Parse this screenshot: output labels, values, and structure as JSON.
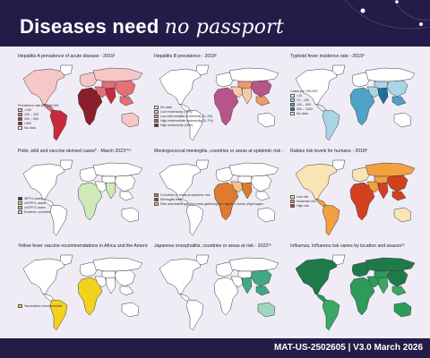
{
  "header": {
    "title_main": "Diseases need",
    "title_em": "no passport"
  },
  "footer": {
    "code": "MAT-US-2502605 | V3.0 March 2026"
  },
  "panels": [
    {
      "title": "Hepatitis A prevalence of acute disease - 2019¹",
      "legend_header": "Prevalence rate per 100,000",
      "legend": [
        {
          "label": "<100",
          "color": "#f7c6c7"
        },
        {
          "label": "100 – 200",
          "color": "#e46f78"
        },
        {
          "label": "200 – 500",
          "color": "#c72b3b"
        },
        {
          "label": ">500",
          "color": "#8c1d2b"
        },
        {
          "label": "No data",
          "color": "#ffffff"
        }
      ]
    },
    {
      "title": "Hepatitis B prevalence - 2019²",
      "legend_header": "",
      "legend": [
        {
          "label": "No data",
          "color": "#ffffff"
        },
        {
          "label": "Low endemicity (<2%)",
          "color": "#f8c9a8"
        },
        {
          "label": "Low intermediate endemicity (2–4%)",
          "color": "#ef9a6b"
        },
        {
          "label": "High intermediate endemicity (5–7%)",
          "color": "#b8548a"
        },
        {
          "label": "High endemicity (≥8%)",
          "color": "#7a1f4d"
        }
      ]
    },
    {
      "title": "Typhoid fever incidence rate - 2019³",
      "legend_header": "Cases per 100,000",
      "legend": [
        {
          "label": "<10",
          "color": "#e3f1f6"
        },
        {
          "label": "10 – 100",
          "color": "#a9d6e6"
        },
        {
          "label": "100 – 500",
          "color": "#4fa3c7"
        },
        {
          "label": "500 – 1000",
          "color": "#1f6f9a"
        },
        {
          "label": "No data",
          "color": "#ffffff"
        }
      ]
    },
    {
      "title": "Polio, wild and vaccine derived cases* - March 2023⁴⁵⁶",
      "legend_header": "",
      "legend": [
        {
          "label": "WPV1 cases",
          "color": "#3b2c6e"
        },
        {
          "label": "cVDPV1 cases",
          "color": "#e0d566"
        },
        {
          "label": "cVDPV2 cases",
          "color": "#9fd17a"
        },
        {
          "label": "Endemic countries",
          "color": "#cfe9b8"
        }
      ]
    },
    {
      "title": "Meningococcal meningitis, countries or areas at epidemic risk - 2015⁷",
      "legend_header": "",
      "legend": [
        {
          "label": "Countries or areas at epidemic risk",
          "color": "#e07a2e"
        },
        {
          "label": "Meningitis belt",
          "color": "#b33c1c"
        },
        {
          "label": "Risk associated with the mass gathering for Hajj and Umrah pilgrimages",
          "color": "#f3c18f"
        }
      ]
    },
    {
      "title": "Rabies risk levels for humans - 2018⁸",
      "legend_header": "",
      "legend": [
        {
          "label": "Low risk",
          "color": "#f9e4b5"
        },
        {
          "label": "Moderate risk",
          "color": "#f1a13f"
        },
        {
          "label": "High risk",
          "color": "#d2401f"
        }
      ]
    },
    {
      "title": "Yellow fever vaccine recommendations in Africa and the Americas 2016-2018⁹",
      "legend_header": "",
      "legend": [
        {
          "label": "Vaccination recommended",
          "color": "#f3d21e"
        }
      ]
    },
    {
      "title": "Japanese encephalitis, countries or areas at risk - 2022¹⁰",
      "legend_header": "",
      "legend": []
    },
    {
      "title": "Influenza, Influenza risk varies by location and season¹¹",
      "legend_header": "",
      "legend": []
    }
  ]
}
